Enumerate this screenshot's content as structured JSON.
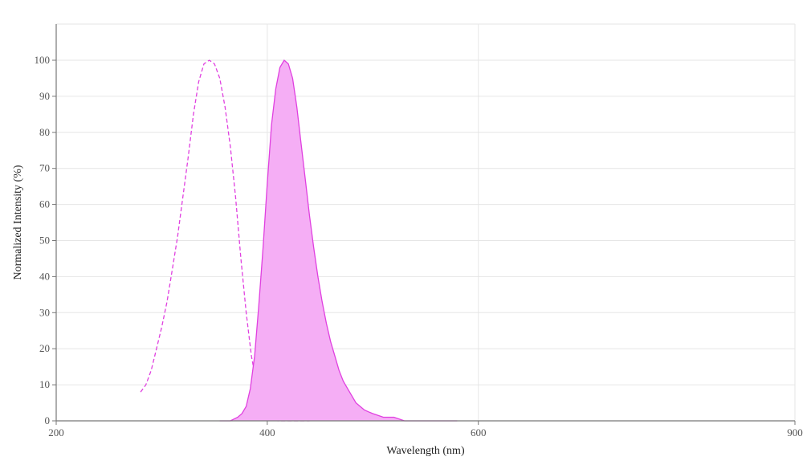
{
  "chart_data": {
    "type": "area",
    "xlabel": "Wavelength (nm)",
    "ylabel": "Normalized Intensity (%)",
    "xlim": [
      200,
      900
    ],
    "ylim": [
      0,
      110
    ],
    "x_ticks": [
      200,
      400,
      600,
      900
    ],
    "y_ticks": [
      0,
      10,
      20,
      30,
      40,
      50,
      60,
      70,
      80,
      90,
      100
    ],
    "grid": true,
    "series": [
      {
        "style": "dashed-line",
        "color": "#e040e0",
        "x": [
          280,
          285,
          290,
          295,
          300,
          305,
          310,
          315,
          320,
          325,
          330,
          335,
          340,
          345,
          350,
          355,
          360,
          365,
          370,
          375,
          380,
          385,
          390,
          395,
          400,
          405,
          410,
          415,
          420,
          430,
          440
        ],
        "y": [
          8,
          10,
          14,
          20,
          26,
          33,
          42,
          51,
          62,
          73,
          85,
          94,
          99,
          100,
          99,
          95,
          87,
          76,
          62,
          45,
          30,
          18,
          10,
          5,
          2,
          1,
          0,
          0,
          0,
          0,
          0
        ]
      },
      {
        "style": "filled-area",
        "color": "#e040e0",
        "fill": "#f5aef5",
        "x": [
          355,
          365,
          372,
          376,
          380,
          384,
          388,
          392,
          396,
          400,
          404,
          408,
          412,
          416,
          420,
          424,
          428,
          432,
          436,
          440,
          444,
          448,
          452,
          456,
          460,
          464,
          468,
          472,
          476,
          480,
          484,
          488,
          492,
          496,
          500,
          505,
          510,
          520,
          530,
          540,
          560,
          580
        ],
        "y": [
          0,
          0,
          1,
          2,
          4,
          9,
          18,
          32,
          48,
          66,
          82,
          92,
          98,
          100,
          99,
          95,
          87,
          77,
          67,
          57,
          48,
          40,
          33,
          27,
          22,
          18,
          14,
          11,
          9,
          7,
          5,
          4,
          3,
          2.5,
          2,
          1.5,
          1,
          1,
          0,
          0,
          0,
          0
        ]
      }
    ]
  }
}
